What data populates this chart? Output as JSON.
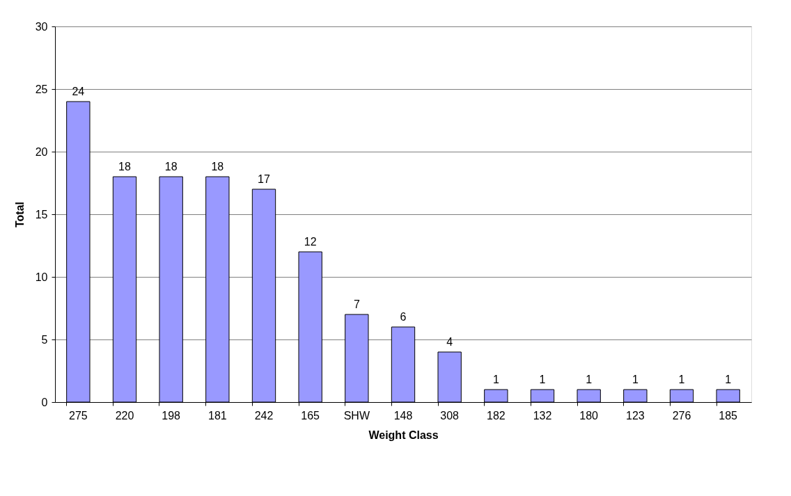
{
  "chart_data": {
    "type": "bar",
    "xlabel": "Weight Class",
    "ylabel": "Total",
    "categories": [
      "275",
      "220",
      "198",
      "181",
      "242",
      "165",
      "SHW",
      "148",
      "308",
      "182",
      "132",
      "180",
      "123",
      "276",
      "185"
    ],
    "values": [
      24,
      18,
      18,
      18,
      17,
      12,
      7,
      6,
      4,
      1,
      1,
      1,
      1,
      1,
      1
    ],
    "color": "#9999ff",
    "ylim": [
      0,
      30
    ],
    "yticks": [
      0,
      5,
      10,
      15,
      20,
      25,
      30
    ],
    "grid": "y",
    "data_labels": true
  }
}
